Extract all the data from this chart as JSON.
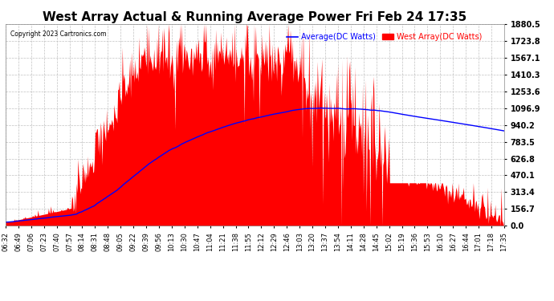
{
  "title": "West Array Actual & Running Average Power Fri Feb 24 17:35",
  "copyright": "Copyright 2023 Cartronics.com",
  "legend_avg": "Average(DC Watts)",
  "legend_west": "West Array(DC Watts)",
  "ylabel_ticks": [
    0.0,
    156.7,
    313.4,
    470.1,
    626.8,
    783.5,
    940.2,
    1096.9,
    1253.6,
    1410.3,
    1567.1,
    1723.8,
    1880.5
  ],
  "ymax": 1880.5,
  "ymin": 0.0,
  "bg_color": "#ffffff",
  "plot_bg_color": "#ffffff",
  "grid_color": "#bbbbbb",
  "title_color": "#000000",
  "copyright_color": "#000000",
  "area_color": "#ff0000",
  "avg_line_color": "#0000ff",
  "x_label_fontsize": 6.0,
  "title_fontsize": 11,
  "time_labels": [
    "06:32",
    "06:49",
    "07:06",
    "07:23",
    "07:40",
    "07:57",
    "08:14",
    "08:31",
    "08:48",
    "09:05",
    "09:22",
    "09:39",
    "09:56",
    "10:13",
    "10:30",
    "10:47",
    "11:04",
    "11:21",
    "11:38",
    "11:55",
    "12:12",
    "12:29",
    "12:46",
    "13:03",
    "13:20",
    "13:37",
    "13:54",
    "14:11",
    "14:28",
    "14:45",
    "15:02",
    "15:19",
    "15:36",
    "15:53",
    "16:10",
    "16:27",
    "16:44",
    "17:01",
    "17:18",
    "17:35"
  ]
}
